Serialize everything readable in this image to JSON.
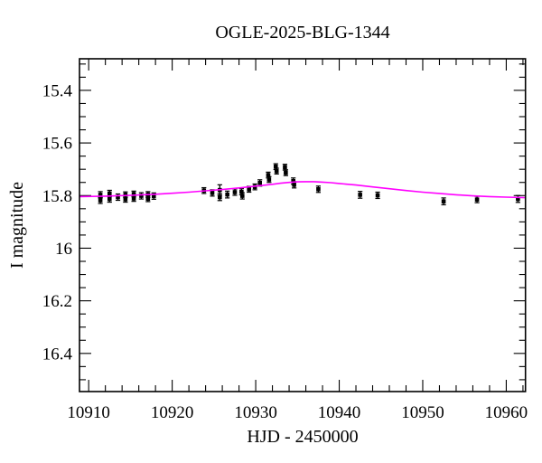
{
  "figure_background": "#ffffff",
  "chart_data": {
    "type": "scatter",
    "title": "OGLE-2025-BLG-1344",
    "xlabel": "HJD - 2450000",
    "ylabel": "I magnitude",
    "xlim": [
      10908.9,
      10962.3
    ],
    "ylim": [
      16.545,
      15.28
    ],
    "y_axis_inverted": true,
    "grid": false,
    "legend": null,
    "x_major_ticks": [
      10910,
      10920,
      10930,
      10940,
      10950,
      10960
    ],
    "x_tick_labels": [
      "10910",
      "10920",
      "10930",
      "10940",
      "10950",
      "10960"
    ],
    "x_minor_step": 2,
    "y_major_ticks": [
      15.4,
      15.6,
      15.8,
      16.0,
      16.2,
      16.4
    ],
    "y_tick_labels": [
      "15.4",
      "15.6",
      "15.8",
      "16",
      "16.2",
      "16.4"
    ],
    "y_minor_step": 0.05,
    "marker_color": "#000000",
    "model_color": "#ff00ff",
    "points": [
      {
        "x": 10911.4,
        "y": 15.797,
        "e": 0.012
      },
      {
        "x": 10911.4,
        "y": 15.818,
        "e": 0.012
      },
      {
        "x": 10912.5,
        "y": 15.792,
        "e": 0.012
      },
      {
        "x": 10912.5,
        "y": 15.813,
        "e": 0.012
      },
      {
        "x": 10913.5,
        "y": 15.806,
        "e": 0.012
      },
      {
        "x": 10914.4,
        "y": 15.797,
        "e": 0.011
      },
      {
        "x": 10914.4,
        "y": 15.814,
        "e": 0.011
      },
      {
        "x": 10915.4,
        "y": 15.794,
        "e": 0.011
      },
      {
        "x": 10915.4,
        "y": 15.811,
        "e": 0.011
      },
      {
        "x": 10916.3,
        "y": 15.801,
        "e": 0.012
      },
      {
        "x": 10917.1,
        "y": 15.796,
        "e": 0.011
      },
      {
        "x": 10917.1,
        "y": 15.812,
        "e": 0.011
      },
      {
        "x": 10917.8,
        "y": 15.802,
        "e": 0.012
      },
      {
        "x": 10923.8,
        "y": 15.781,
        "e": 0.011
      },
      {
        "x": 10924.8,
        "y": 15.79,
        "e": 0.012
      },
      {
        "x": 10925.7,
        "y": 15.779,
        "e": 0.02
      },
      {
        "x": 10925.7,
        "y": 15.806,
        "e": 0.013
      },
      {
        "x": 10926.6,
        "y": 15.796,
        "e": 0.013
      },
      {
        "x": 10927.5,
        "y": 15.787,
        "e": 0.012
      },
      {
        "x": 10928.3,
        "y": 15.785,
        "e": 0.012
      },
      {
        "x": 10928.4,
        "y": 15.801,
        "e": 0.012
      },
      {
        "x": 10929.2,
        "y": 15.776,
        "e": 0.011
      },
      {
        "x": 10929.9,
        "y": 15.767,
        "e": 0.011
      },
      {
        "x": 10930.5,
        "y": 15.752,
        "e": 0.012
      },
      {
        "x": 10931.5,
        "y": 15.722,
        "e": 0.011
      },
      {
        "x": 10931.6,
        "y": 15.739,
        "e": 0.011
      },
      {
        "x": 10932.4,
        "y": 15.69,
        "e": 0.011
      },
      {
        "x": 10932.5,
        "y": 15.707,
        "e": 0.011
      },
      {
        "x": 10933.5,
        "y": 15.692,
        "e": 0.011
      },
      {
        "x": 10933.6,
        "y": 15.713,
        "e": 0.011
      },
      {
        "x": 10934.5,
        "y": 15.745,
        "e": 0.012
      },
      {
        "x": 10934.6,
        "y": 15.759,
        "e": 0.012
      },
      {
        "x": 10937.5,
        "y": 15.776,
        "e": 0.012
      },
      {
        "x": 10942.5,
        "y": 15.797,
        "e": 0.013
      },
      {
        "x": 10944.6,
        "y": 15.799,
        "e": 0.012
      },
      {
        "x": 10952.5,
        "y": 15.822,
        "e": 0.013
      },
      {
        "x": 10956.5,
        "y": 15.815,
        "e": 0.012
      },
      {
        "x": 10961.4,
        "y": 15.813,
        "e": 0.013
      }
    ],
    "model_curve": [
      [
        10908.9,
        15.804
      ],
      [
        10912,
        15.802
      ],
      [
        10915,
        15.799
      ],
      [
        10918,
        15.795
      ],
      [
        10920,
        15.791
      ],
      [
        10922,
        15.787
      ],
      [
        10924,
        15.782
      ],
      [
        10926,
        15.777
      ],
      [
        10928,
        15.771
      ],
      [
        10930,
        15.764
      ],
      [
        10932,
        15.757
      ],
      [
        10933,
        15.753
      ],
      [
        10934,
        15.75
      ],
      [
        10935,
        15.748
      ],
      [
        10936,
        15.747
      ],
      [
        10937,
        15.747
      ],
      [
        10938,
        15.749
      ],
      [
        10939,
        15.751
      ],
      [
        10940,
        15.754
      ],
      [
        10942,
        15.76
      ],
      [
        10944,
        15.767
      ],
      [
        10946,
        15.774
      ],
      [
        10948,
        15.781
      ],
      [
        10950,
        15.787
      ],
      [
        10952,
        15.792
      ],
      [
        10954,
        15.797
      ],
      [
        10956,
        15.801
      ],
      [
        10958,
        15.804
      ],
      [
        10960,
        15.806
      ],
      [
        10962.3,
        15.808
      ]
    ]
  }
}
